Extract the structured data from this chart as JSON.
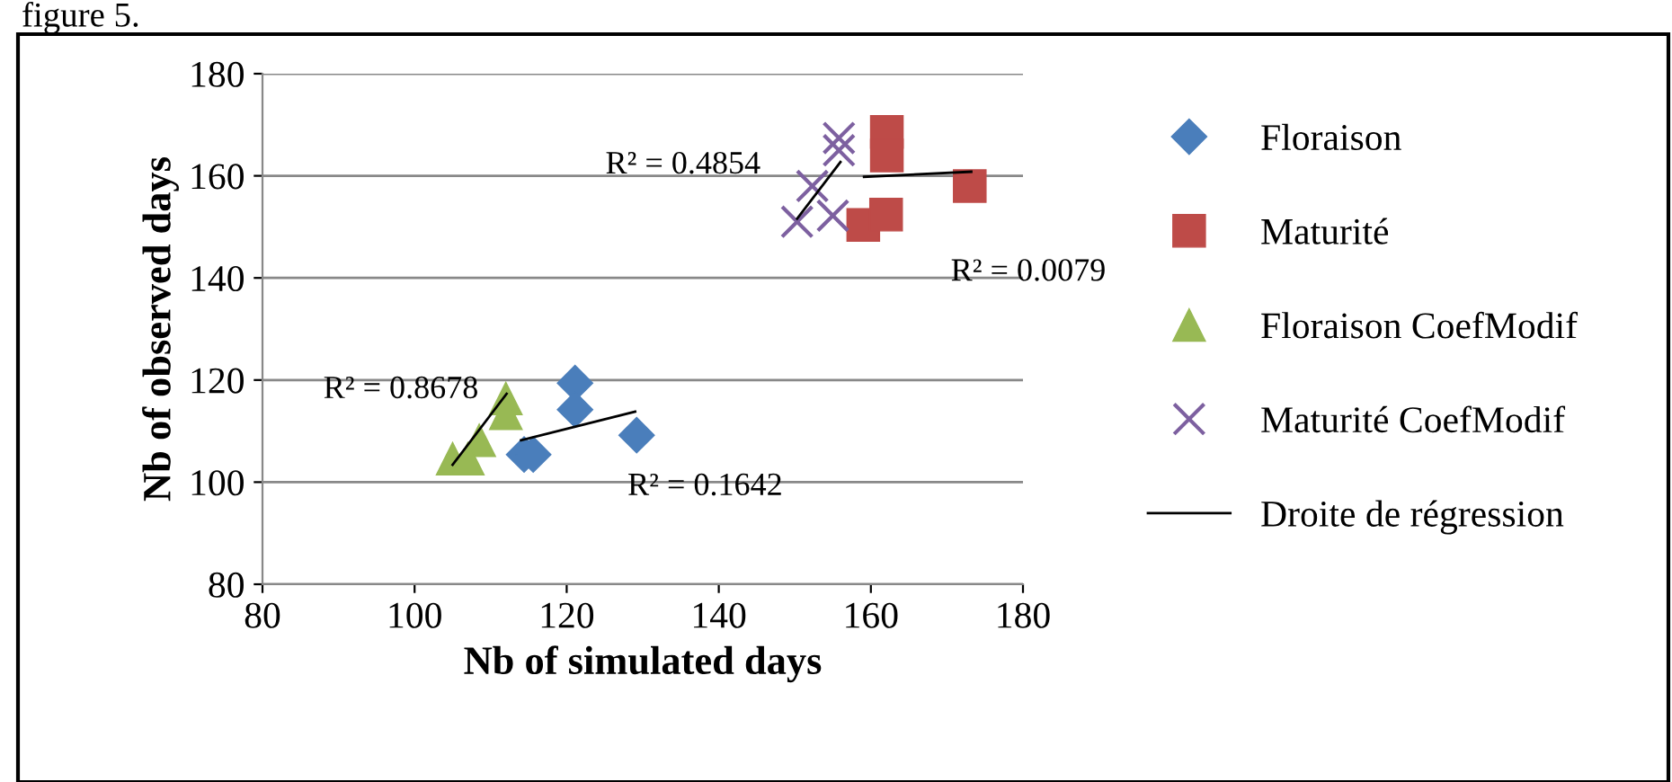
{
  "chart_data": {
    "type": "scatter",
    "xlabel": "Nb of simulated days",
    "ylabel": "Nb of observed days",
    "xlim": [
      80,
      180
    ],
    "xticks": [
      80,
      100,
      120,
      140,
      160,
      180
    ],
    "ylim": [
      80,
      180
    ],
    "yticks": [
      80,
      100,
      120,
      140,
      160,
      180
    ],
    "grid": "y",
    "legend": "right",
    "series": [
      {
        "name": "Floraison",
        "color": "#4a7ebb",
        "marker": "diamond",
        "x": [
          121.1,
          121.1,
          114.4,
          115.6,
          129.2
        ],
        "values": [
          119.4,
          114.2,
          105.4,
          105.4,
          109.2
        ]
      },
      {
        "name": "Maturité",
        "color": "#be4b48",
        "marker": "square",
        "x": [
          162.1,
          162.1,
          173,
          159,
          162
        ],
        "values": [
          168.6,
          164,
          158,
          150.4,
          152.4
        ]
      },
      {
        "name": "Floraison CoefModif",
        "color": "#98b954",
        "marker": "triangle",
        "x": [
          112,
          112,
          108.5,
          105,
          107
        ],
        "values": [
          116.4,
          113.5,
          108.2,
          104.6,
          104.6
        ]
      },
      {
        "name": "Maturité CoefModif",
        "color": "#7d60a0",
        "marker": "cross",
        "x": [
          155.8,
          155.8,
          152.3,
          150.3,
          155
        ],
        "values": [
          167.4,
          165,
          158,
          151,
          152.2
        ]
      },
      {
        "name": "Droite de régression",
        "type": "line",
        "color": "#000000",
        "x": [
          114,
          129
        ],
        "values": [
          108.2,
          113.8
        ]
      },
      {
        "type": "line",
        "color": "#000000",
        "x": [
          159.1,
          173.2
        ],
        "values": [
          159.8,
          160.8
        ]
      },
      {
        "type": "line",
        "color": "#000000",
        "x": [
          105,
          112.1
        ],
        "values": [
          103.4,
          117.3
        ]
      },
      {
        "type": "line",
        "color": "#000000",
        "x": [
          150.3,
          156
        ],
        "values": [
          151.6,
          162.7
        ]
      }
    ],
    "annotations": [
      "figure 5.",
      "R² = 0.1642",
      "R² = 0.0079",
      "R² = 0.8678",
      "R² = 0.4854"
    ]
  }
}
